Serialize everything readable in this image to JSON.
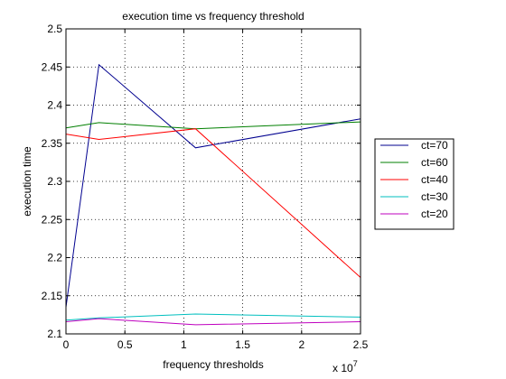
{
  "chart_data": {
    "type": "line",
    "title": "execution time vs frequency threshold",
    "xlabel": "frequency thresholds",
    "ylabel": "execution time",
    "x_multiplier_label": "x 10",
    "x_multiplier_exponent": "7",
    "xlim": [
      0,
      2.5
    ],
    "ylim": [
      2.1,
      2.5
    ],
    "xticks": [
      0,
      0.5,
      1,
      1.5,
      2,
      2.5
    ],
    "xtick_labels": [
      "0",
      "0.5",
      "1",
      "1.5",
      "2",
      "2.5"
    ],
    "yticks": [
      2.1,
      2.15,
      2.2,
      2.25,
      2.3,
      2.35,
      2.4,
      2.45,
      2.5
    ],
    "ytick_labels": [
      "2.1",
      "2.15",
      "2.2",
      "2.25",
      "2.3",
      "2.35",
      "2.4",
      "2.45",
      "2.5"
    ],
    "grid": true,
    "legend_position": "outside-right",
    "series": [
      {
        "name": "ct=70",
        "color": "#00008f",
        "x": [
          0,
          0.28,
          1.1,
          2.5
        ],
        "y": [
          2.135,
          2.453,
          2.344,
          2.382
        ]
      },
      {
        "name": "ct=60",
        "color": "#007f00",
        "x": [
          0,
          0.28,
          1.1,
          2.5
        ],
        "y": [
          2.37,
          2.377,
          2.369,
          2.378
        ]
      },
      {
        "name": "ct=40",
        "color": "#ff0000",
        "x": [
          0,
          0.28,
          1.1,
          2.5
        ],
        "y": [
          2.362,
          2.355,
          2.369,
          2.174
        ]
      },
      {
        "name": "ct=30",
        "color": "#00bfbf",
        "x": [
          0,
          0.28,
          1.1,
          2.5
        ],
        "y": [
          2.118,
          2.121,
          2.126,
          2.122
        ]
      },
      {
        "name": "ct=20",
        "color": "#bf00bf",
        "x": [
          0,
          0.28,
          1.1,
          2.5
        ],
        "y": [
          2.116,
          2.12,
          2.112,
          2.116
        ]
      }
    ]
  }
}
